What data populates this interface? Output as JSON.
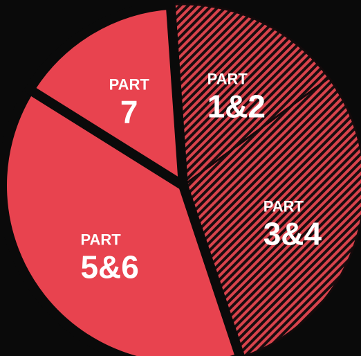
{
  "chart_data": {
    "type": "pie",
    "categories": [
      "PART\n1&2",
      "PART\n3&4",
      "PART\n5&6",
      "PART\n7"
    ],
    "values": [
      16,
      30,
      39,
      15
    ],
    "colors": [
      "#e0434d",
      "#e0434d",
      "#e8434f",
      "#e8434f"
    ],
    "hatch": [
      true,
      true,
      false,
      false
    ],
    "startangle": -4
  }
}
